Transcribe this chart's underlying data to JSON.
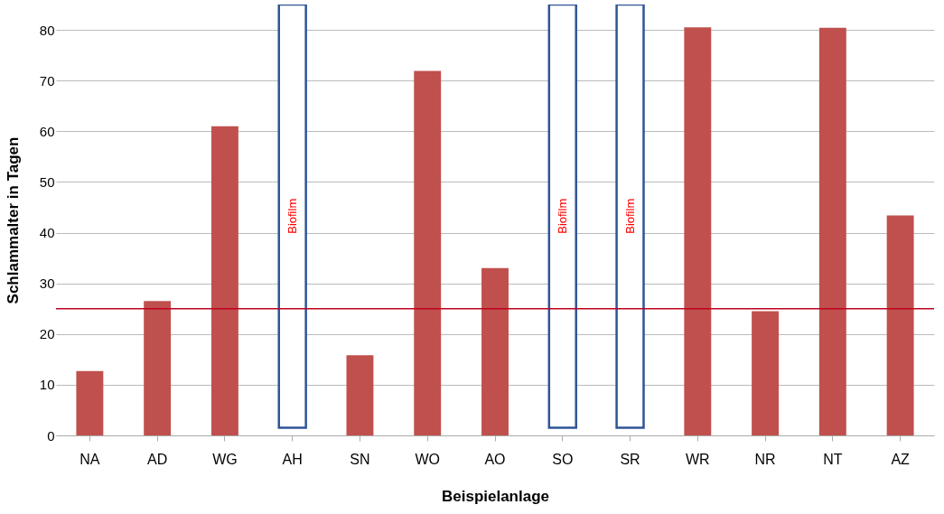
{
  "chart_data": {
    "type": "bar",
    "xlabel": "Beispielanlage",
    "ylabel": "Schlammalter  in Tagen",
    "categories": [
      "NA",
      "AD",
      "WG",
      "AH",
      "SN",
      "WO",
      "AO",
      "SO",
      "SR",
      "WR",
      "NR",
      "NT",
      "AZ"
    ],
    "series": [
      {
        "color": "#c0504d",
        "values": [
          12.7,
          26.5,
          61,
          null,
          15.8,
          71.9,
          33,
          null,
          null,
          80.5,
          24.5,
          80.4,
          43.4
        ]
      },
      {
        "name": "Biofilm",
        "color": "#2f5597",
        "base": [
          null,
          null,
          null,
          1.5,
          null,
          null,
          null,
          1.5,
          1.5,
          null,
          null,
          null,
          null
        ],
        "values": [
          null,
          null,
          null,
          83.5,
          null,
          null,
          null,
          83.5,
          83.5,
          null,
          null,
          null,
          null
        ]
      }
    ],
    "ylim": [
      0,
      85
    ],
    "yticks": [
      0,
      10,
      20,
      30,
      40,
      50,
      60,
      70,
      80
    ],
    "ref_lines": [
      {
        "axis": "y",
        "value": 25,
        "color": "#c00020"
      }
    ],
    "grid": "y"
  }
}
